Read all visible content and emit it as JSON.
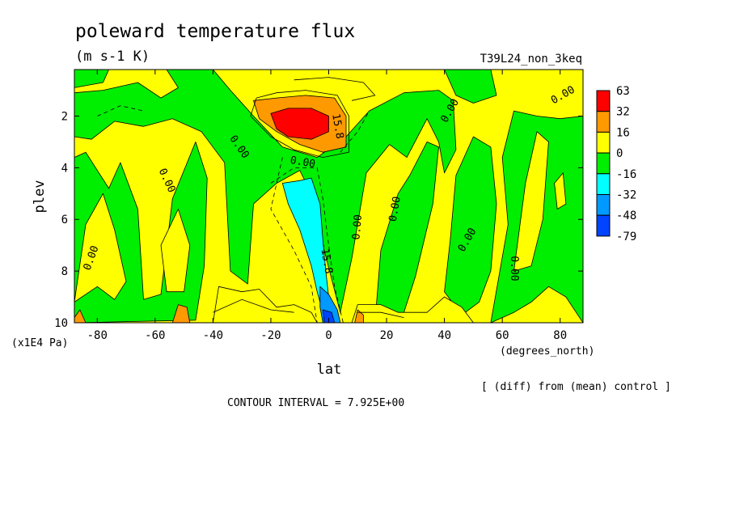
{
  "chart_data": {
    "type": "heatmap",
    "title": "poleward temperature flux",
    "units": "(m s-1 K)",
    "run_label": "T39L24_non_3keq",
    "xlabel": "lat",
    "x_units": "(degrees_north)",
    "ylabel": "plev",
    "y_units": "(x1E4 Pa)",
    "x_ticks": [
      "-80",
      "-60",
      "-40",
      "-20",
      "0",
      "20",
      "40",
      "60",
      "80"
    ],
    "x_tick_values": [
      -80,
      -60,
      -40,
      -20,
      0,
      20,
      40,
      60,
      80
    ],
    "y_ticks": [
      "2",
      "4",
      "6",
      "8",
      "10"
    ],
    "y_tick_values": [
      2,
      4,
      6,
      8,
      10
    ],
    "xlim": [
      -87.9,
      87.9
    ],
    "ylim": [
      0.2,
      10
    ],
    "y_inverted": true,
    "subtitle_note": "[ (diff) from (mean) control ]",
    "contour_interval_text": "CONTOUR INTERVAL = 7.925E+00",
    "contour_labels": [
      {
        "text": "0.00",
        "lon": -82,
        "lev": 7.5,
        "rot": -70
      },
      {
        "text": "0.00",
        "lon": -56,
        "lev": 4.5,
        "rot": 65
      },
      {
        "text": "0.00",
        "lon": -31,
        "lev": 3.2,
        "rot": 55
      },
      {
        "text": "0.00",
        "lon": -9,
        "lev": 3.8,
        "rot": 10
      },
      {
        "text": "15.8",
        "lon": 3,
        "lev": 2.4,
        "rot": 80
      },
      {
        "text": "-15.8",
        "lon": -1,
        "lev": 7.5,
        "rot": 80
      },
      {
        "text": "0.00",
        "lon": 10,
        "lev": 6.3,
        "rot": -85
      },
      {
        "text": "0.00",
        "lon": 23,
        "lev": 5.6,
        "rot": -80
      },
      {
        "text": "0.00",
        "lon": 42,
        "lev": 1.8,
        "rot": -60
      },
      {
        "text": "0.00",
        "lon": 48,
        "lev": 6.8,
        "rot": -60
      },
      {
        "text": "0.00",
        "lon": 64,
        "lev": 7.9,
        "rot": 90
      },
      {
        "text": "0.00",
        "lon": 81,
        "lev": 1.2,
        "rot": -30
      }
    ],
    "colorbar": {
      "labels": [
        "63",
        "32",
        "16",
        "0",
        "-16",
        "-32",
        "-48",
        "-79"
      ],
      "colors": [
        "#ff0000",
        "#ff9900",
        "#ffff00",
        "#00ee00",
        "#00ffff",
        "#0099ff",
        "#0044ff"
      ]
    },
    "regions": [
      {
        "name": "green-left-tongue",
        "color": "#00ee00",
        "points": [
          [
            -87.9,
            10
          ],
          [
            -87.9,
            3.6
          ],
          [
            -84,
            3.4
          ],
          [
            -76,
            4.8
          ],
          [
            -72,
            3.8
          ],
          [
            -66,
            5.6
          ],
          [
            -64,
            9.1
          ],
          [
            -58,
            8.9
          ],
          [
            -54,
            5.2
          ],
          [
            -46,
            3.0
          ],
          [
            -42,
            4.4
          ],
          [
            -43,
            7.8
          ],
          [
            -46,
            9.9
          ]
        ]
      },
      {
        "name": "green-central-band",
        "color": "#00ee00",
        "points": [
          [
            -87.9,
            2.8
          ],
          [
            -82,
            2.9
          ],
          [
            -74,
            2.2
          ],
          [
            -64,
            2.4
          ],
          [
            -54,
            2.1
          ],
          [
            -44,
            2.6
          ],
          [
            -36,
            3.8
          ],
          [
            -34,
            8.0
          ],
          [
            -28,
            8.5
          ],
          [
            -26,
            5.4
          ],
          [
            -18,
            4.6
          ],
          [
            -10,
            4.1
          ],
          [
            -6,
            5.0
          ],
          [
            -2,
            7.0
          ],
          [
            4,
            9.6
          ],
          [
            8,
            7.5
          ],
          [
            13,
            4.2
          ],
          [
            21,
            3.1
          ],
          [
            27,
            3.6
          ],
          [
            34,
            2.1
          ],
          [
            38,
            3.0
          ],
          [
            40,
            4.2
          ],
          [
            44,
            3.3
          ],
          [
            43,
            1.4
          ],
          [
            38,
            1.0
          ],
          [
            26,
            1.1
          ],
          [
            14,
            1.8
          ],
          [
            6,
            2.8
          ],
          [
            -4,
            3.6
          ],
          [
            -16,
            3.2
          ],
          [
            -26,
            2.0
          ],
          [
            -34,
            1.0
          ],
          [
            -40,
            0.2
          ],
          [
            -56,
            0.2
          ],
          [
            -52,
            0.9
          ],
          [
            -58,
            1.3
          ],
          [
            -66,
            0.7
          ],
          [
            -78,
            1.0
          ],
          [
            -87.9,
            1.1
          ]
        ]
      },
      {
        "name": "green-right-west",
        "color": "#00ee00",
        "points": [
          [
            16,
            10
          ],
          [
            18,
            7.2
          ],
          [
            24,
            5.0
          ],
          [
            28,
            4.3
          ],
          [
            34,
            3.0
          ],
          [
            38,
            3.2
          ],
          [
            36,
            5.4
          ],
          [
            30,
            8.2
          ],
          [
            26,
            9.6
          ],
          [
            22,
            9.9
          ]
        ]
      },
      {
        "name": "green-right-middle",
        "color": "#00ee00",
        "points": [
          [
            40,
            8.8
          ],
          [
            42,
            6.8
          ],
          [
            44,
            4.3
          ],
          [
            50,
            2.8
          ],
          [
            56,
            3.2
          ],
          [
            58,
            5.4
          ],
          [
            56,
            8.0
          ],
          [
            52,
            9.2
          ],
          [
            46,
            9.7
          ]
        ]
      },
      {
        "name": "green-right-east",
        "color": "#00ee00",
        "points": [
          [
            56,
            10
          ],
          [
            62,
            6.2
          ],
          [
            60,
            3.6
          ],
          [
            64,
            1.8
          ],
          [
            72,
            2.0
          ],
          [
            80,
            2.1
          ],
          [
            87.9,
            2.0
          ],
          [
            87.9,
            10
          ],
          [
            82,
            9.0
          ],
          [
            76,
            8.6
          ],
          [
            70,
            9.2
          ],
          [
            64,
            9.6
          ]
        ]
      },
      {
        "name": "green-top-right",
        "color": "#00ee00",
        "points": [
          [
            40,
            0.2
          ],
          [
            56,
            0.2
          ],
          [
            58,
            1.2
          ],
          [
            50,
            1.5
          ],
          [
            44,
            1.2
          ]
        ]
      },
      {
        "name": "green-cap-left",
        "color": "#00ee00",
        "points": [
          [
            -87.9,
            0.2
          ],
          [
            -76,
            0.2
          ],
          [
            -78,
            0.7
          ],
          [
            -87.9,
            0.9
          ]
        ]
      },
      {
        "name": "yellow-plume-left",
        "color": "#ffff00",
        "points": [
          [
            -87.9,
            9.2
          ],
          [
            -84,
            6.2
          ],
          [
            -78,
            5.0
          ],
          [
            -74,
            6.4
          ],
          [
            -70,
            8.4
          ],
          [
            -74,
            9.1
          ],
          [
            -80,
            8.6
          ]
        ]
      },
      {
        "name": "yellow-plume-mid",
        "color": "#ffff00",
        "points": [
          [
            -58,
            7.0
          ],
          [
            -52,
            5.6
          ],
          [
            -48,
            7.0
          ],
          [
            -50,
            8.8
          ],
          [
            -56,
            8.8
          ]
        ]
      },
      {
        "name": "yellow-west-bottom",
        "color": "#ffff00",
        "points": [
          [
            -40,
            10
          ],
          [
            -38,
            8.6
          ],
          [
            -30,
            8.8
          ],
          [
            -24,
            8.7
          ],
          [
            -18,
            9.4
          ],
          [
            -12,
            9.3
          ],
          [
            -6,
            9.6
          ],
          [
            -4,
            10
          ]
        ]
      },
      {
        "name": "yellow-east-bottom",
        "color": "#ffff00",
        "points": [
          [
            8,
            10
          ],
          [
            10,
            9.3
          ],
          [
            18,
            9.3
          ],
          [
            24,
            9.6
          ],
          [
            34,
            9.6
          ],
          [
            40,
            9.0
          ],
          [
            46,
            9.4
          ],
          [
            50,
            10
          ]
        ]
      },
      {
        "name": "yellow-channel-east",
        "color": "#ffff00",
        "points": [
          [
            64,
            8.0
          ],
          [
            68,
            4.6
          ],
          [
            72,
            2.6
          ],
          [
            76,
            3.0
          ],
          [
            74,
            6.0
          ],
          [
            70,
            7.8
          ]
        ]
      },
      {
        "name": "yellow-spot-east",
        "color": "#ffff00",
        "points": [
          [
            78,
            4.6
          ],
          [
            81,
            4.2
          ],
          [
            82,
            5.4
          ],
          [
            79,
            5.6
          ]
        ]
      },
      {
        "name": "orange-bottom-left",
        "color": "#ff9900",
        "points": [
          [
            -87.9,
            9.8
          ],
          [
            -86,
            9.5
          ],
          [
            -84,
            10
          ],
          [
            -87.9,
            10
          ]
        ]
      },
      {
        "name": "orange-bottom-mid",
        "color": "#ff9900",
        "points": [
          [
            -54,
            10
          ],
          [
            -52,
            9.3
          ],
          [
            -49,
            9.4
          ],
          [
            -48,
            10
          ]
        ]
      },
      {
        "name": "orange-bottom-east",
        "color": "#ff9900",
        "points": [
          [
            9,
            10
          ],
          [
            10,
            9.5
          ],
          [
            12,
            9.7
          ],
          [
            12,
            10
          ]
        ]
      },
      {
        "name": "orange-upper-max",
        "color": "#ff9900",
        "points": [
          [
            -26,
            1.4
          ],
          [
            -18,
            1.3
          ],
          [
            -8,
            1.2
          ],
          [
            2,
            1.3
          ],
          [
            6,
            2.0
          ],
          [
            6,
            3.2
          ],
          [
            -2,
            3.4
          ],
          [
            -10,
            3.1
          ],
          [
            -18,
            2.6
          ],
          [
            -24,
            2.1
          ]
        ]
      },
      {
        "name": "red-upper-core",
        "color": "#ff0000",
        "points": [
          [
            -20,
            1.9
          ],
          [
            -14,
            1.7
          ],
          [
            -6,
            1.7
          ],
          [
            0,
            2.0
          ],
          [
            0,
            2.6
          ],
          [
            -6,
            2.9
          ],
          [
            -14,
            2.8
          ],
          [
            -18,
            2.5
          ]
        ]
      },
      {
        "name": "cyan-plume",
        "color": "#00ffff",
        "points": [
          [
            -16,
            4.6
          ],
          [
            -10,
            4.5
          ],
          [
            -6,
            4.4
          ],
          [
            -3,
            5.4
          ],
          [
            -2,
            6.8
          ],
          [
            -1,
            8.0
          ],
          [
            0,
            9.0
          ],
          [
            2,
            9.6
          ],
          [
            3,
            10
          ],
          [
            -1,
            10
          ],
          [
            -4,
            8.8
          ],
          [
            -6,
            7.8
          ],
          [
            -10,
            6.4
          ],
          [
            -14,
            5.4
          ]
        ]
      },
      {
        "name": "blue-base",
        "color": "#0099ff",
        "points": [
          [
            -3,
            8.6
          ],
          [
            0,
            8.9
          ],
          [
            3,
            9.5
          ],
          [
            4,
            10
          ],
          [
            -2,
            10
          ],
          [
            -3,
            9.4
          ]
        ]
      },
      {
        "name": "deep-blue-core",
        "color": "#0044ff",
        "points": [
          [
            -2,
            9.5
          ],
          [
            1,
            9.6
          ],
          [
            2,
            10
          ],
          [
            -1.5,
            10
          ]
        ]
      }
    ],
    "contours_solid": [
      {
        "points": [
          [
            -25,
            1.3
          ],
          [
            -18,
            1.1
          ],
          [
            -8,
            1.0
          ],
          [
            3,
            1.2
          ],
          [
            7,
            2.0
          ],
          [
            7,
            3.4
          ],
          [
            -2,
            3.6
          ],
          [
            -12,
            3.3
          ],
          [
            -20,
            2.8
          ],
          [
            -27,
            2.0
          ],
          [
            -25,
            1.3
          ]
        ]
      },
      {
        "points": [
          [
            -12,
            0.6
          ],
          [
            0,
            0.5
          ],
          [
            12,
            0.7
          ],
          [
            16,
            1.2
          ],
          [
            8,
            1.4
          ]
        ]
      },
      {
        "points": [
          [
            -40,
            9.6
          ],
          [
            -30,
            9.1
          ],
          [
            -20,
            9.5
          ],
          [
            -12,
            9.6
          ]
        ]
      },
      {
        "points": [
          [
            10,
            9.6
          ],
          [
            18,
            9.6
          ],
          [
            26,
            9.8
          ]
        ]
      }
    ],
    "contours_dashed": [
      {
        "points": [
          [
            -20,
            4.6
          ],
          [
            -12,
            4.0
          ],
          [
            -4,
            4.0
          ],
          [
            -2,
            5.2
          ],
          [
            0,
            7.0
          ],
          [
            2,
            8.6
          ],
          [
            5,
            10
          ]
        ]
      },
      {
        "points": [
          [
            -16,
            3.6
          ],
          [
            -20,
            5.6
          ],
          [
            -12,
            7.2
          ],
          [
            -6,
            8.6
          ],
          [
            -4,
            10
          ]
        ]
      },
      {
        "points": [
          [
            4,
            3.4
          ],
          [
            10,
            2.6
          ],
          [
            14,
            1.8
          ]
        ]
      },
      {
        "points": [
          [
            -80,
            2.0
          ],
          [
            -72,
            1.6
          ],
          [
            -64,
            1.8
          ]
        ]
      }
    ]
  }
}
